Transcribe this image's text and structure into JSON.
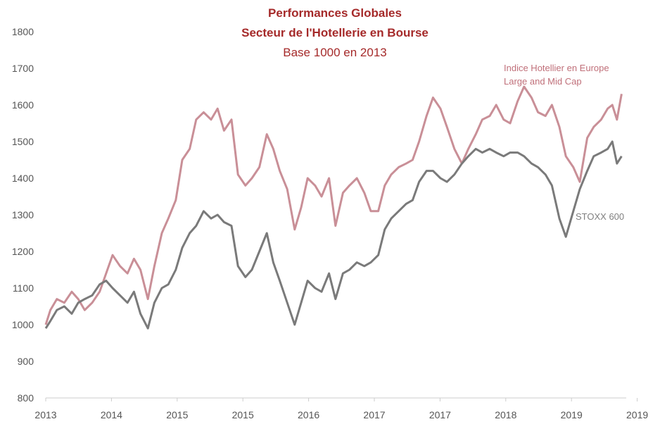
{
  "chart_data": {
    "type": "line",
    "title": "Performances Globales",
    "subtitle_line1": "Secteur de l'Hotellerie en Bourse",
    "subtitle_line2": "Base 1000 en 2013",
    "xlabel": "",
    "ylabel": "",
    "ylim": [
      800,
      1800
    ],
    "yticks": [
      800,
      900,
      1000,
      1100,
      1200,
      1300,
      1400,
      1500,
      1600,
      1700,
      1800
    ],
    "xlim": [
      2013.0,
      2019.25
    ],
    "xtick_labels": [
      "2013",
      "2014",
      "2015",
      "2015",
      "2016",
      "2017",
      "2017",
      "2018",
      "2019",
      "2019"
    ],
    "grid": false,
    "colors": {
      "hotel": "#c98f97",
      "stoxx": "#7a7a7a",
      "title": "#a52a2a",
      "axis": "#cccccc"
    },
    "annotations": {
      "hotel_line1": "Indice Hotellier en Europe",
      "hotel_line2": "Large and Mid Cap",
      "stoxx": "STOXX 600"
    },
    "series": [
      {
        "name": "Indice Hotellier en Europe Large and Mid Cap",
        "color": "#c98f97",
        "x": [
          2013.0,
          2013.05,
          2013.12,
          2013.2,
          2013.28,
          2013.35,
          2013.42,
          2013.5,
          2013.58,
          2013.65,
          2013.72,
          2013.8,
          2013.88,
          2013.95,
          2014.02,
          2014.1,
          2014.17,
          2014.25,
          2014.32,
          2014.4,
          2014.47,
          2014.55,
          2014.62,
          2014.7,
          2014.78,
          2014.85,
          2014.92,
          2015.0,
          2015.07,
          2015.15,
          2015.22,
          2015.3,
          2015.38,
          2015.45,
          2015.52,
          2015.6,
          2015.68,
          2015.75,
          2015.82,
          2015.9,
          2015.97,
          2016.05,
          2016.12,
          2016.2,
          2016.27,
          2016.35,
          2016.43,
          2016.5,
          2016.58,
          2016.65,
          2016.72,
          2016.8,
          2016.88,
          2016.95,
          2017.02,
          2017.1,
          2017.17,
          2017.25,
          2017.32,
          2017.4,
          2017.48,
          2017.55,
          2017.63,
          2017.7,
          2017.78,
          2017.85,
          2017.93,
          2018.0,
          2018.08,
          2018.15,
          2018.23,
          2018.3,
          2018.38,
          2018.45,
          2018.53,
          2018.6,
          2018.68,
          2018.75,
          2018.83,
          2018.9,
          2018.98,
          2019.05,
          2019.1,
          2019.15,
          2019.2
        ],
        "values": [
          1000,
          1040,
          1070,
          1060,
          1090,
          1070,
          1040,
          1060,
          1090,
          1140,
          1190,
          1160,
          1140,
          1180,
          1150,
          1070,
          1160,
          1250,
          1290,
          1340,
          1450,
          1480,
          1560,
          1580,
          1560,
          1590,
          1530,
          1560,
          1410,
          1380,
          1400,
          1430,
          1520,
          1480,
          1420,
          1370,
          1260,
          1320,
          1400,
          1380,
          1350,
          1400,
          1270,
          1360,
          1380,
          1400,
          1360,
          1310,
          1310,
          1380,
          1410,
          1430,
          1440,
          1450,
          1500,
          1570,
          1620,
          1590,
          1540,
          1480,
          1440,
          1480,
          1520,
          1560,
          1570,
          1600,
          1560,
          1550,
          1610,
          1650,
          1620,
          1580,
          1570,
          1600,
          1540,
          1460,
          1430,
          1390,
          1510,
          1540,
          1560,
          1590,
          1600,
          1560,
          1630
        ]
      },
      {
        "name": "STOXX 600",
        "color": "#7a7a7a",
        "x": [
          2013.0,
          2013.05,
          2013.12,
          2013.2,
          2013.28,
          2013.35,
          2013.42,
          2013.5,
          2013.58,
          2013.65,
          2013.72,
          2013.8,
          2013.88,
          2013.95,
          2014.02,
          2014.1,
          2014.17,
          2014.25,
          2014.32,
          2014.4,
          2014.47,
          2014.55,
          2014.62,
          2014.7,
          2014.78,
          2014.85,
          2014.92,
          2015.0,
          2015.07,
          2015.15,
          2015.22,
          2015.3,
          2015.38,
          2015.45,
          2015.52,
          2015.6,
          2015.68,
          2015.75,
          2015.82,
          2015.9,
          2015.97,
          2016.05,
          2016.12,
          2016.2,
          2016.27,
          2016.35,
          2016.43,
          2016.5,
          2016.58,
          2016.65,
          2016.72,
          2016.8,
          2016.88,
          2016.95,
          2017.02,
          2017.1,
          2017.17,
          2017.25,
          2017.32,
          2017.4,
          2017.48,
          2017.55,
          2017.63,
          2017.7,
          2017.78,
          2017.85,
          2017.93,
          2018.0,
          2018.08,
          2018.15,
          2018.23,
          2018.3,
          2018.38,
          2018.45,
          2018.53,
          2018.6,
          2018.68,
          2018.75,
          2018.83,
          2018.9,
          2018.98,
          2019.05,
          2019.1,
          2019.15,
          2019.2
        ],
        "values": [
          990,
          1010,
          1040,
          1050,
          1030,
          1060,
          1070,
          1080,
          1110,
          1120,
          1100,
          1080,
          1060,
          1090,
          1030,
          990,
          1060,
          1100,
          1110,
          1150,
          1210,
          1250,
          1270,
          1310,
          1290,
          1300,
          1280,
          1270,
          1160,
          1130,
          1150,
          1200,
          1250,
          1170,
          1120,
          1060,
          1000,
          1060,
          1120,
          1100,
          1090,
          1140,
          1070,
          1140,
          1150,
          1170,
          1160,
          1170,
          1190,
          1260,
          1290,
          1310,
          1330,
          1340,
          1390,
          1420,
          1420,
          1400,
          1390,
          1410,
          1440,
          1460,
          1480,
          1470,
          1480,
          1470,
          1460,
          1470,
          1470,
          1460,
          1440,
          1430,
          1410,
          1380,
          1290,
          1240,
          1310,
          1370,
          1420,
          1460,
          1470,
          1480,
          1500,
          1440,
          1460
        ]
      }
    ]
  }
}
